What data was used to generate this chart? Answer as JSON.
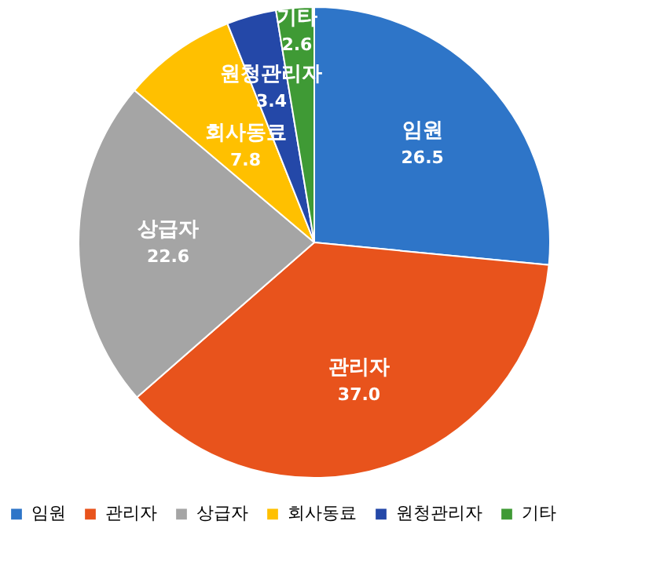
{
  "chart_data": {
    "type": "pie",
    "categories": [
      "임원",
      "관리자",
      "상급자",
      "회사동료",
      "원청관리자",
      "기타"
    ],
    "values": [
      26.5,
      37.0,
      22.6,
      7.8,
      3.4,
      2.6
    ],
    "colors": [
      "#2e75c8",
      "#e8531c",
      "#a5a5a5",
      "#ffc000",
      "#2448a8",
      "#3f9a35"
    ],
    "value_labels": [
      "26.5",
      "37.0",
      "22.6",
      "7.8",
      "3.4",
      "2.6"
    ],
    "legend": "bottom"
  }
}
